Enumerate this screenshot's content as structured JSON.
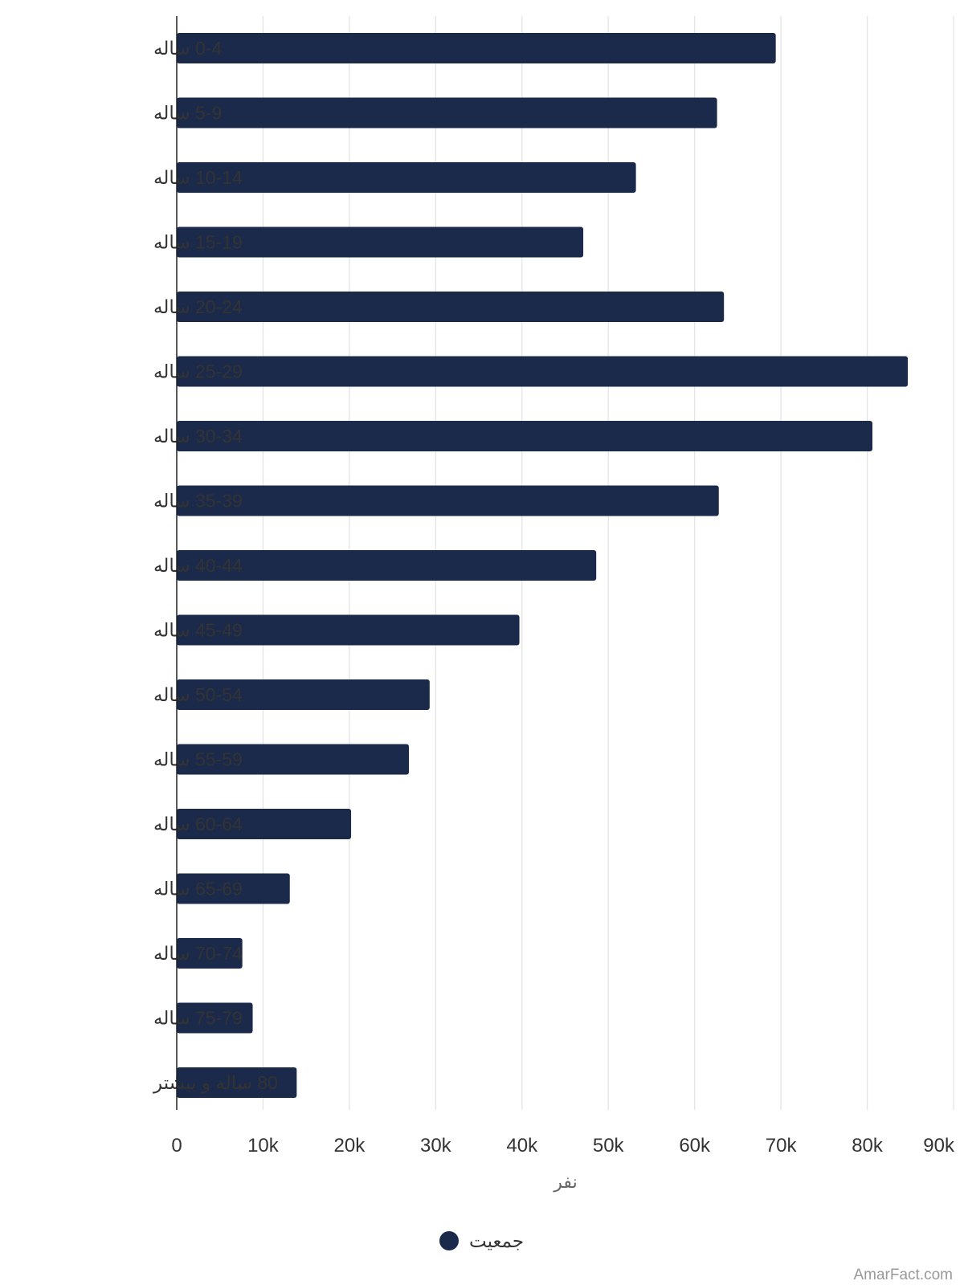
{
  "chart_data": {
    "type": "bar",
    "orientation": "horizontal",
    "categories": [
      "0-4 ساله",
      "5-9 ساله",
      "10-14 ساله",
      "15-19 ساله",
      "20-24 ساله",
      "25-29 ساله",
      "30-34 ساله",
      "35-39 ساله",
      "40-44 ساله",
      "45-49 ساله",
      "50-54 ساله",
      "55-59 ساله",
      "60-64 ساله",
      "65-69 ساله",
      "70-74 ساله",
      "75-79 ساله",
      "80 ساله و بیشتر"
    ],
    "series": [
      {
        "name": "جمعیت",
        "color": "#1b2a4a",
        "values": [
          69400,
          62600,
          53200,
          47100,
          63400,
          84700,
          80600,
          62800,
          48600,
          39700,
          29300,
          26900,
          20200,
          13100,
          7600,
          8800,
          13900
        ]
      }
    ],
    "xlim": [
      0,
      90000
    ],
    "xticks": [
      "0",
      "10k",
      "20k",
      "30k",
      "40k",
      "50k",
      "60k",
      "70k",
      "80k",
      "90k"
    ],
    "xlabel": "نفر",
    "ylabel": "",
    "title": "",
    "grid": true,
    "legend_position": "bottom-center"
  },
  "watermark": "AmarFact.com"
}
